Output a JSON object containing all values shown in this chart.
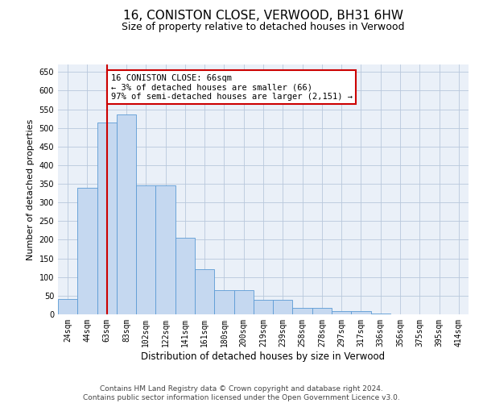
{
  "title": "16, CONISTON CLOSE, VERWOOD, BH31 6HW",
  "subtitle": "Size of property relative to detached houses in Verwood",
  "xlabel": "Distribution of detached houses by size in Verwood",
  "ylabel": "Number of detached properties",
  "footer_line1": "Contains HM Land Registry data © Crown copyright and database right 2024.",
  "footer_line2": "Contains public sector information licensed under the Open Government Licence v3.0.",
  "annotation_line1": "16 CONISTON CLOSE: 66sqm",
  "annotation_line2": "← 3% of detached houses are smaller (66)",
  "annotation_line3": "97% of semi-detached houses are larger (2,151) →",
  "bar_color": "#c5d8f0",
  "bar_edge_color": "#5b9bd5",
  "vline_color": "#cc0000",
  "annotation_box_edge_color": "#cc0000",
  "annotation_box_face_color": "#ffffff",
  "background_color": "#eaf0f8",
  "bin_labels": [
    "24sqm",
    "44sqm",
    "63sqm",
    "83sqm",
    "102sqm",
    "122sqm",
    "141sqm",
    "161sqm",
    "180sqm",
    "200sqm",
    "219sqm",
    "239sqm",
    "258sqm",
    "278sqm",
    "297sqm",
    "317sqm",
    "336sqm",
    "356sqm",
    "375sqm",
    "395sqm",
    "414sqm"
  ],
  "bar_heights": [
    42,
    340,
    515,
    535,
    345,
    345,
    205,
    120,
    65,
    65,
    38,
    38,
    18,
    18,
    8,
    8,
    2,
    0,
    0,
    0,
    1
  ],
  "vline_x": 2,
  "ylim": [
    0,
    670
  ],
  "yticks": [
    0,
    50,
    100,
    150,
    200,
    250,
    300,
    350,
    400,
    450,
    500,
    550,
    600,
    650
  ],
  "title_fontsize": 11,
  "subtitle_fontsize": 9,
  "axis_label_fontsize": 8,
  "tick_fontsize": 7,
  "annotation_fontsize": 7.5,
  "footer_fontsize": 6.5
}
